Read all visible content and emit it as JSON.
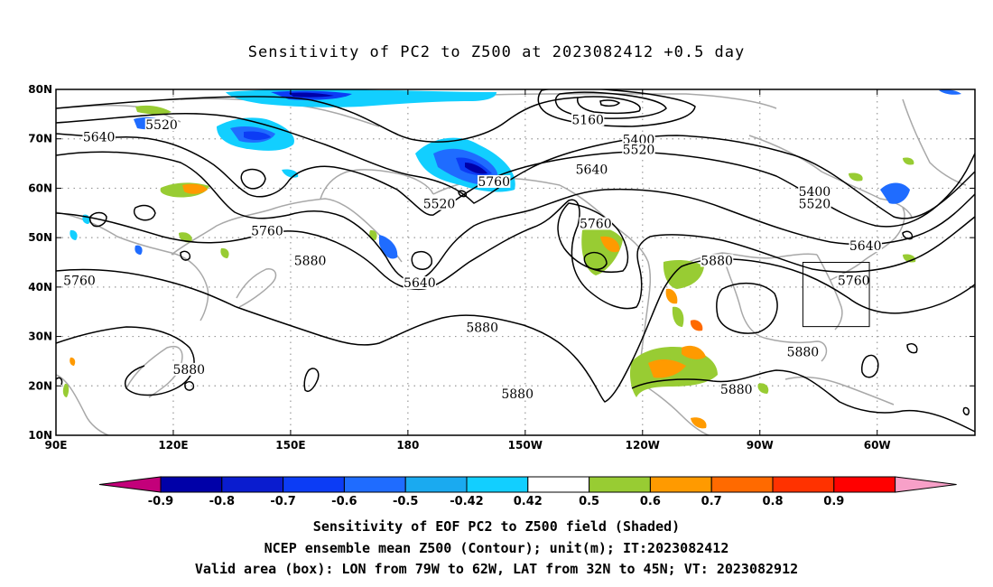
{
  "title": "Sensitivity of PC2 to Z500 at 2023082412 +0.5 day",
  "map": {
    "lat_ticks": [
      "80N",
      "70N",
      "60N",
      "50N",
      "40N",
      "30N",
      "20N",
      "10N"
    ],
    "lon_ticks": [
      "90E",
      "120E",
      "150E",
      "180",
      "150W",
      "120W",
      "90W",
      "60W"
    ],
    "contour_labels": [
      {
        "text": "5520",
        "lon": 117,
        "lat": 72.5
      },
      {
        "text": "5640",
        "lon": 101,
        "lat": 70
      },
      {
        "text": "5160",
        "lon": 226,
        "lat": 73.5
      },
      {
        "text": "5400",
        "lon": 239,
        "lat": 69.5
      },
      {
        "text": "5520",
        "lon": 239,
        "lat": 67.5
      },
      {
        "text": "5640",
        "lon": 227,
        "lat": 63.5
      },
      {
        "text": "5760",
        "lon": 202,
        "lat": 61
      },
      {
        "text": "5520",
        "lon": 188,
        "lat": 56.5
      },
      {
        "text": "5760",
        "lon": 228,
        "lat": 52.5
      },
      {
        "text": "5760",
        "lon": 144,
        "lat": 51
      },
      {
        "text": "5880",
        "lon": 155,
        "lat": 45
      },
      {
        "text": "5640",
        "lon": 183,
        "lat": 40.5
      },
      {
        "text": "5760",
        "lon": 96,
        "lat": 41
      },
      {
        "text": "5880",
        "lon": 259,
        "lat": 45
      },
      {
        "text": "5400",
        "lon": 284,
        "lat": 59
      },
      {
        "text": "5520",
        "lon": 284,
        "lat": 56.5
      },
      {
        "text": "5640",
        "lon": 297,
        "lat": 48
      },
      {
        "text": "5760",
        "lon": 294,
        "lat": 41
      },
      {
        "text": "5880",
        "lon": 199,
        "lat": 31.5
      },
      {
        "text": "5880",
        "lon": 281,
        "lat": 26.5
      },
      {
        "text": "5880",
        "lon": 208,
        "lat": 18
      },
      {
        "text": "5880",
        "lon": 264,
        "lat": 19
      },
      {
        "text": "5880",
        "lon": 124,
        "lat": 23
      }
    ]
  },
  "colorbar": {
    "labels": [
      "-0.9",
      "-0.8",
      "-0.7",
      "-0.6",
      "-0.5",
      "-0.42",
      "0.42",
      "0.5",
      "0.6",
      "0.7",
      "0.8",
      "0.9"
    ],
    "colors": [
      "#c3007a",
      "#0000a8",
      "#0a1ccf",
      "#0c3cf5",
      "#1f6cff",
      "#1aaaf0",
      "#12cfff",
      "#ffffff",
      "#98cc33",
      "#ff9a00",
      "#ff6a00",
      "#ff3200",
      "#ff0000",
      "#f7a0c8"
    ]
  },
  "footer": {
    "line1": "Sensitivity of EOF PC2 to Z500 field (Shaded)",
    "line2": "NCEP ensemble mean Z500 (Contour); unit(m); IT:2023082412",
    "line3": "Valid area (box): LON from 79W to 62W, LAT from 32N to 45N; VT: 2023082912"
  }
}
